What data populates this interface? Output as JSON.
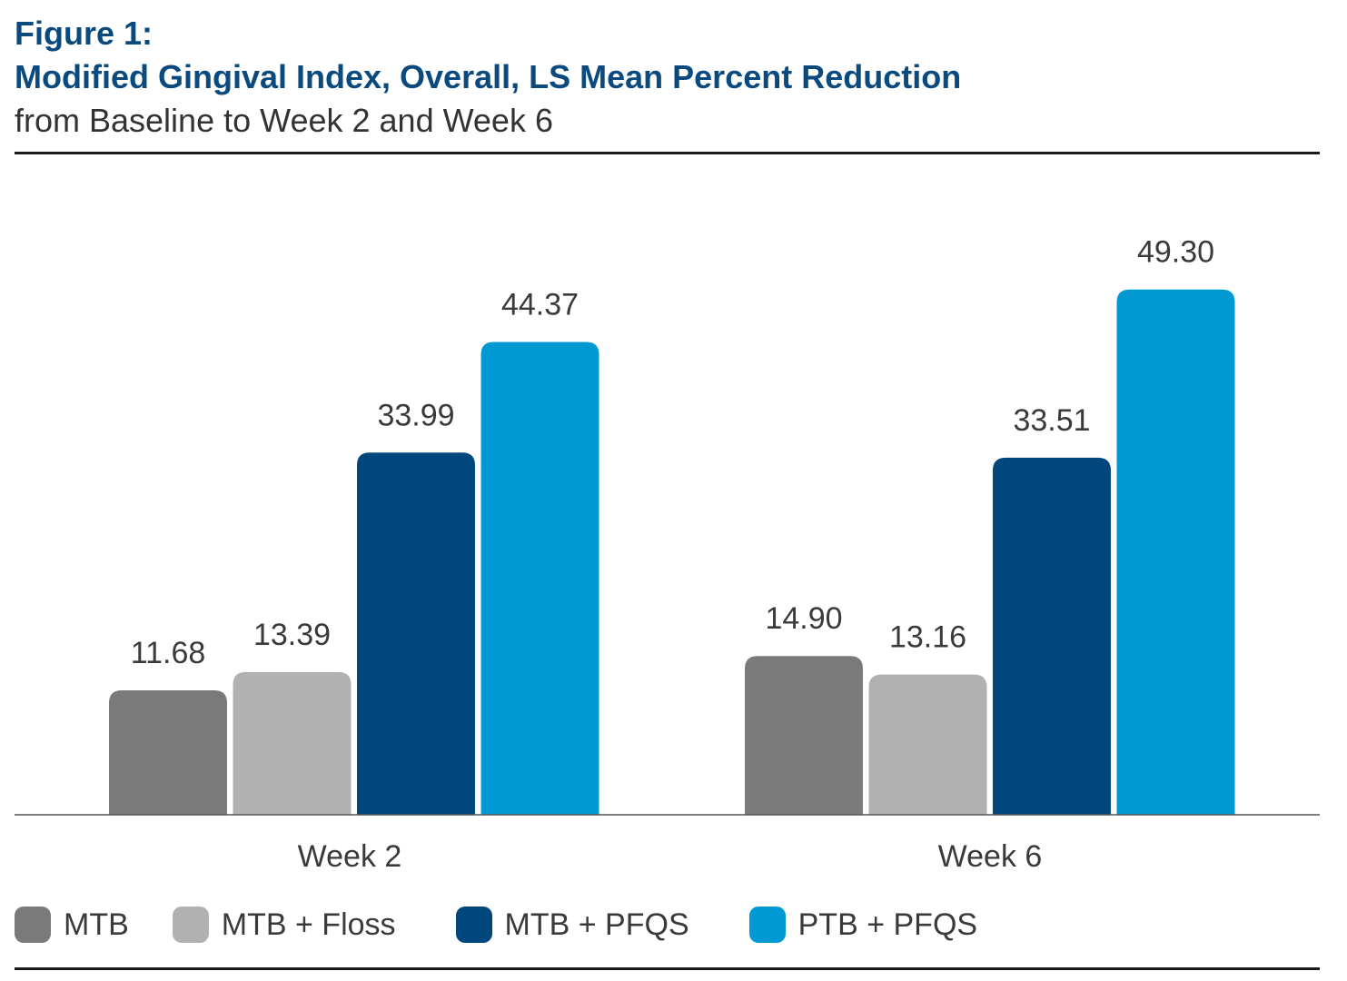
{
  "title": {
    "line1": "Figure 1:",
    "line2": "Modified Gingival Index, Overall, LS Mean Percent Reduction",
    "subtitle": "from Baseline to Week 2 and Week 6"
  },
  "colors": {
    "title": "#0a4a7f",
    "MTB": "#7a7a7a",
    "MTB + Floss": "#b0b1b0",
    "MTB + PFQS": "#00477e",
    "PTB + PFQS": "#0099d3"
  },
  "chart_data": {
    "type": "bar",
    "title": "Modified Gingival Index, Overall, LS Mean Percent Reduction",
    "subtitle": "from Baseline to Week 2 and Week 6",
    "categories": [
      "Week 2",
      "Week 6"
    ],
    "series": [
      {
        "name": "MTB",
        "values": [
          11.68,
          14.9
        ],
        "labels": [
          "11.68",
          "14.90"
        ],
        "color": "#7a7a7a"
      },
      {
        "name": "MTB + Floss",
        "values": [
          13.39,
          13.16
        ],
        "labels": [
          "13.39",
          "13.16"
        ],
        "color": "#b0b1b0"
      },
      {
        "name": "MTB + PFQS",
        "values": [
          33.99,
          33.51
        ],
        "labels": [
          "33.99",
          "33.51"
        ],
        "color": "#00477e"
      },
      {
        "name": "PTB + PFQS",
        "values": [
          44.37,
          49.3
        ],
        "labels": [
          "44.37",
          "49.30"
        ],
        "color": "#0099d3"
      }
    ],
    "xlabel": "",
    "ylabel": "",
    "ylim": [
      0,
      60
    ],
    "grid": false,
    "legend_position": "bottom"
  }
}
